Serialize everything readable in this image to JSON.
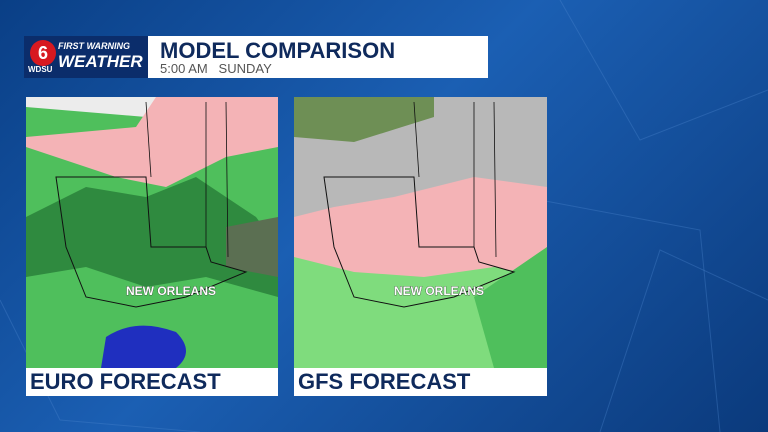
{
  "header": {
    "logo": {
      "channel": "6",
      "station": "WDSU",
      "brand_top": "FIRST WARNING",
      "brand_bottom": "WEATHER"
    },
    "title": "MODEL COMPARISON",
    "time": "5:00 AM",
    "day": "SUNDAY"
  },
  "panels": [
    {
      "label": "EURO FORECAST",
      "city": "NEW ORLEANS"
    },
    {
      "label": "GFS FORECAST",
      "city": "NEW ORLEANS"
    }
  ]
}
